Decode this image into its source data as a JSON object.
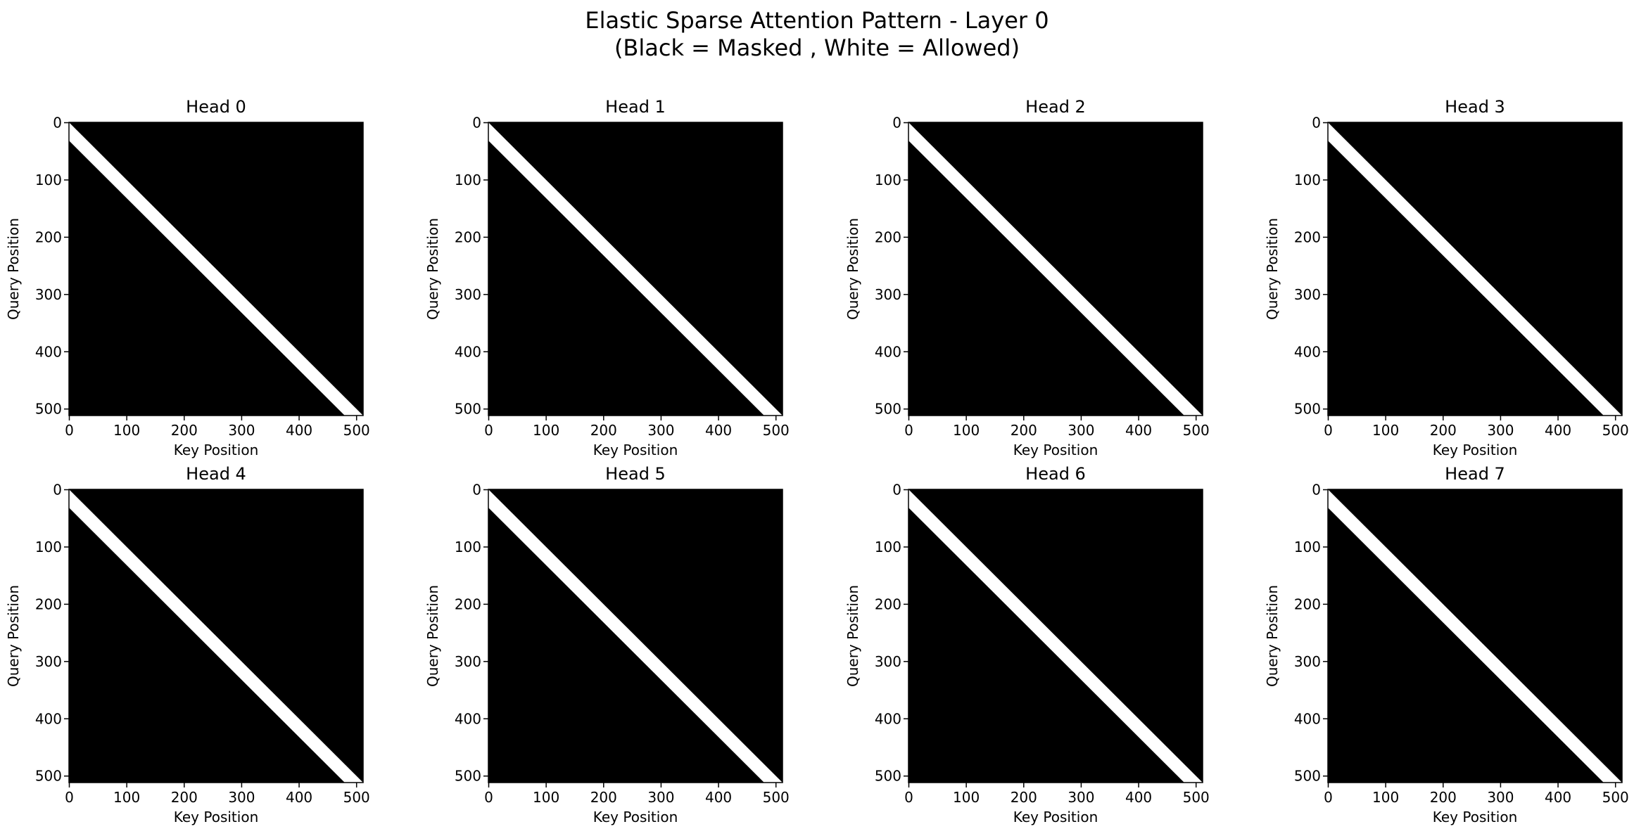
{
  "figure": {
    "title_line1": "Elastic Sparse Attention Pattern - Layer 0",
    "title_line2": "(Black = Masked , White = Allowed)"
  },
  "colors": {
    "masked": "#000000",
    "allowed": "#ffffff"
  },
  "chart_data": [
    {
      "type": "heatmap",
      "title": "Head 0",
      "xlabel": "Key Position",
      "ylabel": "Query Position",
      "size": 512,
      "xlim": [
        0,
        512
      ],
      "ylim": [
        512,
        0
      ],
      "xticks": [
        0,
        100,
        200,
        300,
        400,
        500
      ],
      "yticks": [
        0,
        100,
        200,
        300,
        400,
        500
      ],
      "yticklabels": [
        "0",
        "100",
        "200",
        "300",
        "400",
        "500"
      ],
      "allowed_band": {
        "offset_min": 0,
        "offset_max": 32,
        "description": "key <= query and query - key < 32"
      }
    },
    {
      "type": "heatmap",
      "title": "Head 1",
      "xlabel": "Key Position",
      "ylabel": "Query Position",
      "size": 512,
      "xlim": [
        0,
        512
      ],
      "ylim": [
        512,
        0
      ],
      "xticks": [
        0,
        100,
        200,
        300,
        400,
        500
      ],
      "yticks": [
        0,
        100,
        200,
        300,
        400,
        500
      ],
      "yticklabels": [
        "0",
        "100",
        "200",
        "300",
        "400",
        "500"
      ],
      "allowed_band": {
        "offset_min": 0,
        "offset_max": 32,
        "description": "key <= query and query - key < 32"
      }
    },
    {
      "type": "heatmap",
      "title": "Head 2",
      "xlabel": "Key Position",
      "ylabel": "Query Position",
      "size": 512,
      "xlim": [
        0,
        512
      ],
      "ylim": [
        512,
        0
      ],
      "xticks": [
        0,
        100,
        200,
        300,
        400,
        500
      ],
      "yticks": [
        0,
        100,
        200,
        300,
        400,
        500
      ],
      "yticklabels": [
        "0",
        "100",
        "200",
        "300",
        "400",
        "500"
      ],
      "allowed_band": {
        "offset_min": 0,
        "offset_max": 32,
        "description": "key <= query and query - key < 32"
      }
    },
    {
      "type": "heatmap",
      "title": "Head 3",
      "xlabel": "Key Position",
      "ylabel": "Query Position",
      "size": 512,
      "xlim": [
        0,
        512
      ],
      "ylim": [
        512,
        0
      ],
      "xticks": [
        0,
        100,
        200,
        300,
        400,
        500
      ],
      "yticks": [
        0,
        100,
        200,
        300,
        400,
        500
      ],
      "yticklabels": [
        "0",
        "100",
        "200",
        "300",
        "400",
        "500"
      ],
      "allowed_band": {
        "offset_min": 0,
        "offset_max": 32,
        "description": "key <= query and query - key < 32"
      }
    },
    {
      "type": "heatmap",
      "title": "Head 4",
      "xlabel": "Key Position",
      "ylabel": "Query Position",
      "size": 512,
      "xlim": [
        0,
        512
      ],
      "ylim": [
        512,
        0
      ],
      "xticks": [
        0,
        100,
        200,
        300,
        400,
        500
      ],
      "yticks": [
        0,
        100,
        200,
        300,
        400,
        500
      ],
      "yticklabels": [
        "0",
        "100",
        "200",
        "300",
        "400",
        "500"
      ],
      "allowed_band": {
        "offset_min": 0,
        "offset_max": 32,
        "description": "key <= query and query - key < 32"
      }
    },
    {
      "type": "heatmap",
      "title": "Head 5",
      "xlabel": "Key Position",
      "ylabel": "Query Position",
      "size": 512,
      "xlim": [
        0,
        512
      ],
      "ylim": [
        512,
        0
      ],
      "xticks": [
        0,
        100,
        200,
        300,
        400,
        500
      ],
      "yticks": [
        0,
        100,
        200,
        300,
        400,
        500
      ],
      "yticklabels": [
        "0",
        "100",
        "200",
        "300",
        "400",
        "500"
      ],
      "allowed_band": {
        "offset_min": 0,
        "offset_max": 32,
        "description": "key <= query and query - key < 32"
      }
    },
    {
      "type": "heatmap",
      "title": "Head 6",
      "xlabel": "Key Position",
      "ylabel": "Query Position",
      "size": 512,
      "xlim": [
        0,
        512
      ],
      "ylim": [
        512,
        0
      ],
      "xticks": [
        0,
        100,
        200,
        300,
        400,
        500
      ],
      "yticks": [
        0,
        100,
        200,
        300,
        400,
        500
      ],
      "yticklabels": [
        "0",
        "100",
        "200",
        "300",
        "400",
        "500"
      ],
      "allowed_band": {
        "offset_min": 0,
        "offset_max": 32,
        "description": "key <= query and query - key < 32"
      }
    },
    {
      "type": "heatmap",
      "title": "Head 7",
      "xlabel": "Key Position",
      "ylabel": "Query Position",
      "size": 512,
      "xlim": [
        0,
        512
      ],
      "ylim": [
        512,
        0
      ],
      "xticks": [
        0,
        100,
        200,
        300,
        400,
        500
      ],
      "yticks": [
        0,
        100,
        200,
        300,
        400,
        500
      ],
      "yticklabels": [
        "0",
        "100",
        "200",
        "300",
        "400",
        "500"
      ],
      "allowed_band": {
        "offset_min": 0,
        "offset_max": 32,
        "description": "key <= query and query - key < 32"
      }
    }
  ]
}
